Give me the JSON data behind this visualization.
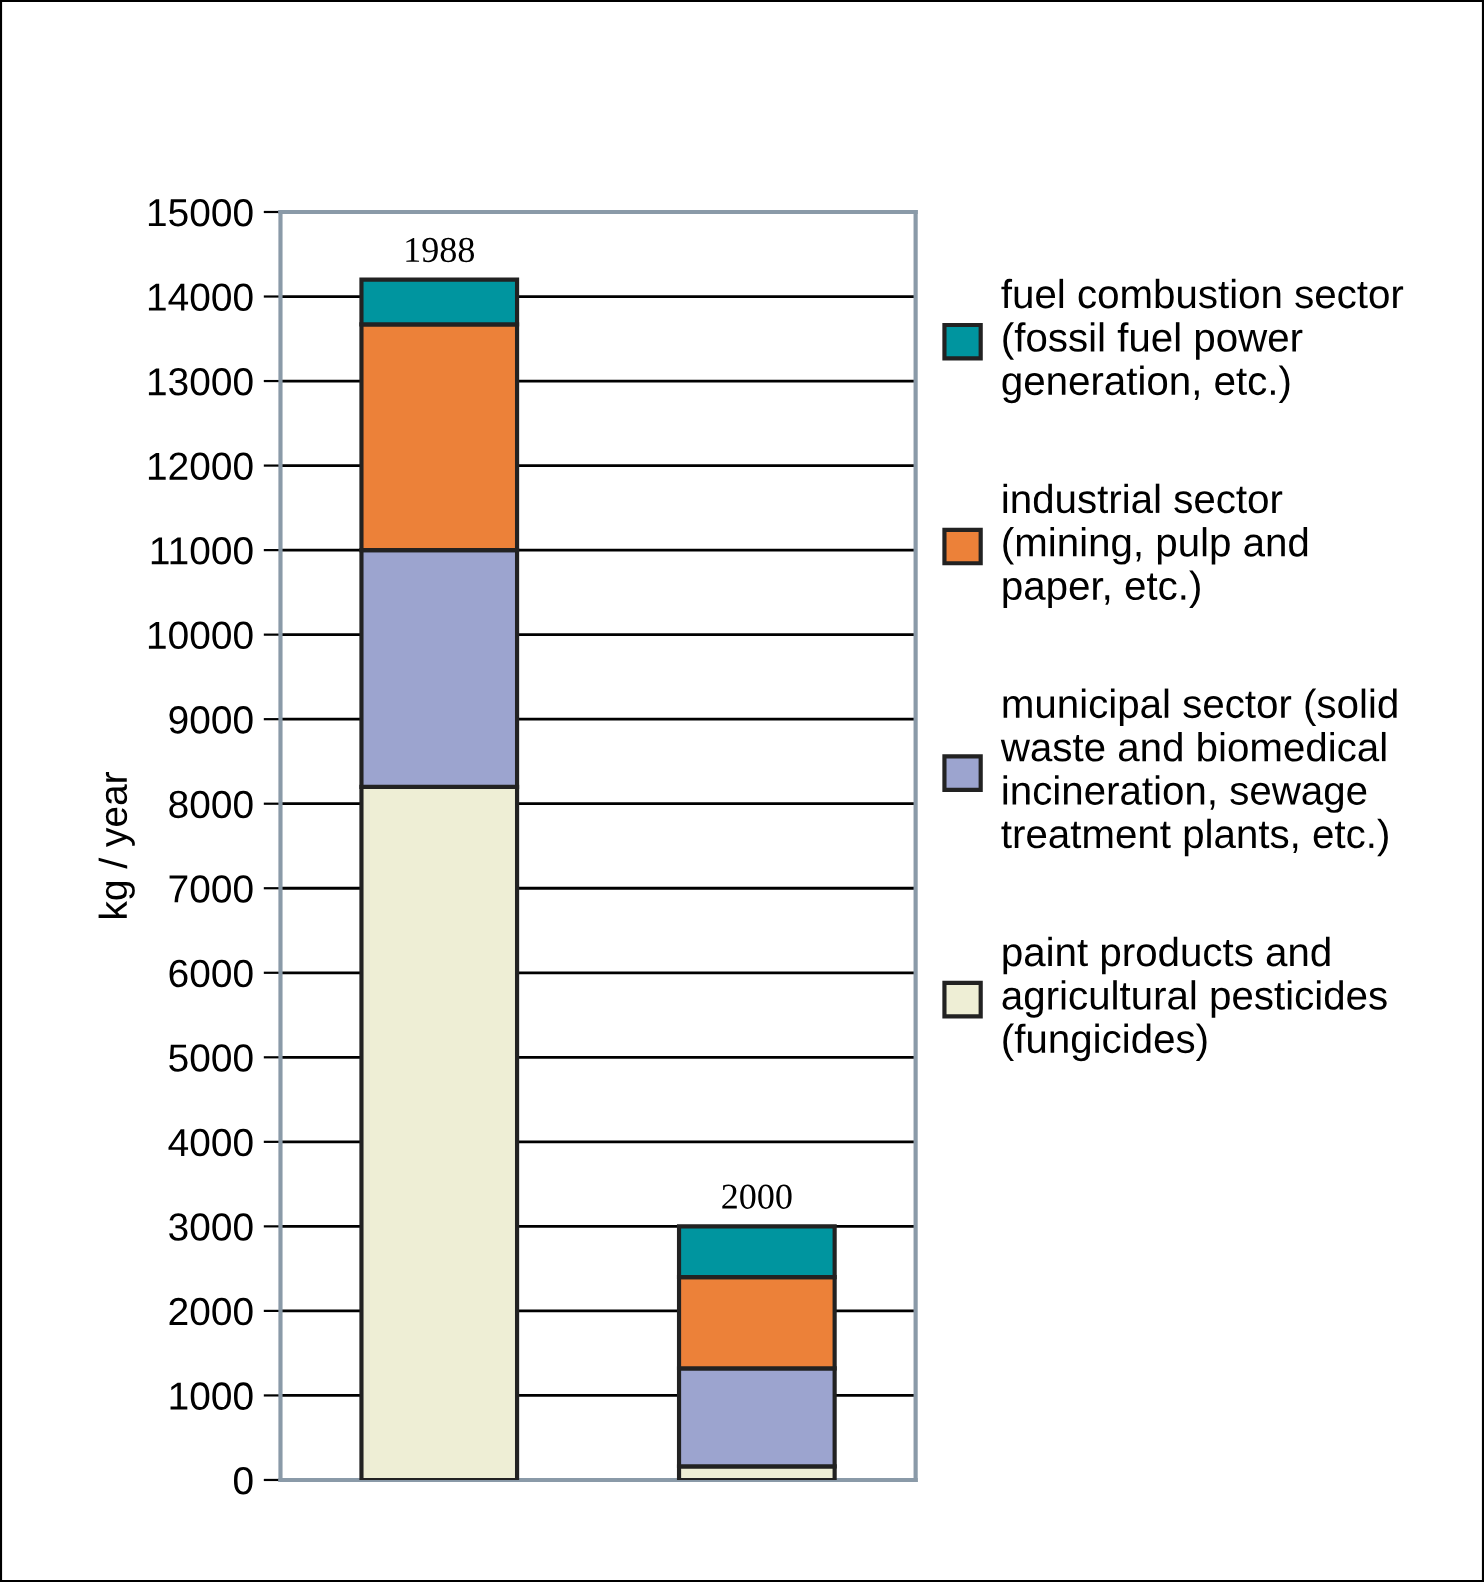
{
  "chart_data": {
    "type": "bar",
    "stacked": true,
    "categories": [
      "1988",
      "2000"
    ],
    "ylabel": "kg / year",
    "ylim": [
      0,
      15000
    ],
    "yticks": [
      0,
      1000,
      2000,
      3000,
      4000,
      5000,
      6000,
      7000,
      8000,
      9000,
      10000,
      11000,
      12000,
      13000,
      14000,
      15000
    ],
    "grid": "y",
    "legend": "right",
    "tick_labels": "y",
    "series": [
      {
        "name": "paint products and\nagricultural pesticides\n(fungicides)",
        "color": "#eeeed5",
        "values": [
          8200,
          160
        ]
      },
      {
        "name": "municipal sector (solid\nwaste and biomedical\nincineration, sewage\ntreatment plants, etc.)",
        "color": "#9ca4cf",
        "values": [
          2800,
          1160
        ]
      },
      {
        "name": "industrial sector\n(mining, pulp and\npaper, etc.)",
        "color": "#ec8139",
        "values": [
          2670,
          1080
        ]
      },
      {
        "name": "fuel combustion sector\n(fossil fuel power\ngeneration, etc.)",
        "color": "#00959f",
        "values": [
          530,
          600
        ]
      }
    ]
  }
}
